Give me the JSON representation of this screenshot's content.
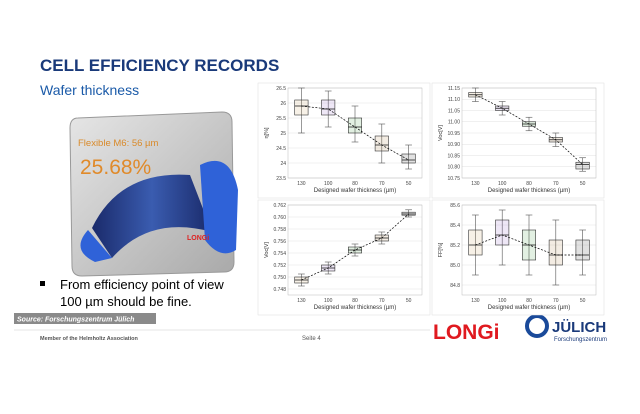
{
  "slide": {
    "title": "CELL EFFICIENCY RECORDS",
    "subtitle": "Wafer thickness",
    "photo": {
      "caption": "Flexible M6: 56 µm",
      "value": "25.68%",
      "brand": "LONGi"
    },
    "bullet": "From efficiency point of view 100 µm should be fine.",
    "source": "Source: Forschungszentrum Jülich",
    "footer": "Member of the Helmholtz Association",
    "page": "Seite 4",
    "logo_longi": "LONGi",
    "logo_julich": "JÜLICH",
    "logo_julich_sub": "Forschungszentrum"
  },
  "chart_data": [
    {
      "type": "box",
      "ylabel": "η[%]",
      "xlabel": "Designed wafer thickness (µm)",
      "categories": [
        "130",
        "100",
        "80",
        "70",
        "50"
      ],
      "colors": [
        "#c8a060",
        "#8a5cc0",
        "#3a9a3a",
        "#b08040",
        "#333333"
      ],
      "min": [
        25.0,
        25.2,
        24.7,
        24.0,
        23.8
      ],
      "q1": [
        25.6,
        25.6,
        25.0,
        24.4,
        24.0
      ],
      "median": [
        25.9,
        25.8,
        25.2,
        24.6,
        24.1
      ],
      "q3": [
        26.1,
        26.1,
        25.5,
        24.9,
        24.3
      ],
      "max": [
        26.5,
        26.4,
        25.9,
        25.3,
        24.6
      ],
      "ylim": [
        23.5,
        26.5
      ],
      "yticks": [
        23.5,
        24,
        24.5,
        25,
        25.5,
        26,
        26.5
      ]
    },
    {
      "type": "box",
      "ylabel": "Voc[V]",
      "xlabel": "Designed wafer thickness (µm)",
      "categories": [
        "130",
        "100",
        "80",
        "70",
        "50"
      ],
      "colors": [
        "#c8a060",
        "#8a5cc0",
        "#3a9a3a",
        "#b08040",
        "#333333"
      ],
      "min": [
        11.09,
        11.03,
        10.96,
        10.89,
        10.78
      ],
      "q1": [
        11.11,
        11.05,
        10.98,
        10.91,
        10.79
      ],
      "median": [
        11.12,
        11.06,
        10.99,
        10.92,
        10.81
      ],
      "q3": [
        11.13,
        11.07,
        11.0,
        10.93,
        10.82
      ],
      "max": [
        11.15,
        11.09,
        11.02,
        10.95,
        10.84
      ],
      "ylim": [
        10.75,
        11.15
      ],
      "yticks": [
        10.75,
        {
          "value": 10.8,
          "label": "10.80"
        },
        10.85,
        {
          "value": 10.9,
          "label": "10.90"
        },
        10.95,
        {
          "value": 11,
          "label": "11.00"
        },
        11.05,
        {
          "value": 11.1,
          "label": "11.10"
        },
        11.15
      ]
    },
    {
      "type": "box",
      "ylabel": "Voc[V]",
      "xlabel": "Designed wafer thickness (µm)",
      "categories": [
        "130",
        "100",
        "80",
        "70",
        "50"
      ],
      "colors": [
        "#c8a060",
        "#8a5cc0",
        "#3a9a3a",
        "#b08040",
        "#333333"
      ],
      "min": [
        0.7485,
        0.7505,
        0.7535,
        0.7555,
        0.76
      ],
      "q1": [
        0.749,
        0.751,
        0.754,
        0.756,
        0.7603
      ],
      "median": [
        0.7495,
        0.7515,
        0.7545,
        0.7565,
        0.7605
      ],
      "q3": [
        0.75,
        0.752,
        0.755,
        0.757,
        0.7608
      ],
      "max": [
        0.7505,
        0.7525,
        0.7555,
        0.7575,
        0.7612
      ],
      "ylim": [
        0.747,
        0.762
      ],
      "yticks": [
        0.748,
        {
          "value": 0.75,
          "label": "0.750"
        },
        0.752,
        0.754,
        0.756,
        0.758,
        {
          "value": 0.76,
          "label": "0.760"
        },
        0.762
      ]
    },
    {
      "type": "box",
      "ylabel": "FF[%]",
      "xlabel": "Designed wafer thickness (µm)",
      "categories": [
        "130",
        "100",
        "80",
        "70",
        "50"
      ],
      "colors": [
        "#c8a060",
        "#8a5cc0",
        "#3a9a3a",
        "#b08040",
        "#333333"
      ],
      "min": [
        84.9,
        85.0,
        84.9,
        84.8,
        84.9
      ],
      "q1": [
        85.1,
        85.2,
        85.05,
        85.0,
        85.05
      ],
      "median": [
        85.2,
        85.3,
        85.2,
        85.1,
        85.1
      ],
      "q3": [
        85.35,
        85.45,
        85.35,
        85.25,
        85.25
      ],
      "max": [
        85.5,
        85.55,
        85.5,
        85.45,
        85.35
      ],
      "ylim": [
        84.7,
        85.6
      ],
      "yticks": [
        84.8,
        {
          "value": 85,
          "label": "85.0"
        },
        85.2,
        85.4,
        85.6
      ]
    }
  ]
}
